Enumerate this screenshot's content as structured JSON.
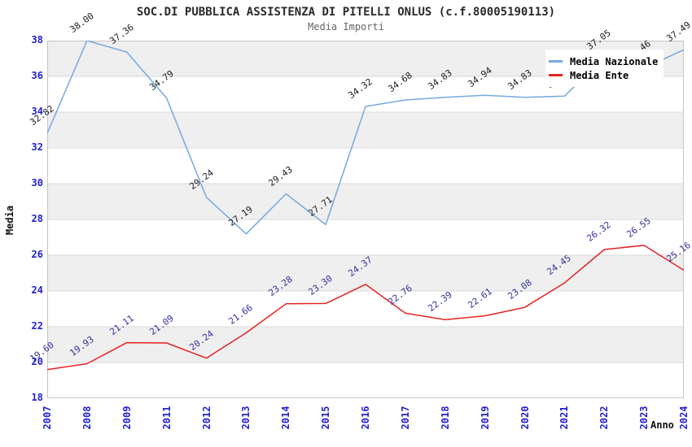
{
  "header": {
    "title": "SOC.DI PUBBLICA ASSISTENZA DI PITELLI ONLUS (c.f.80005190113)",
    "subtitle": "Media Importi"
  },
  "axes": {
    "y_label": "Media",
    "x_label": "Anno",
    "y_ticks": [
      38,
      36,
      34,
      32,
      30,
      28,
      26,
      24,
      22,
      20,
      18
    ]
  },
  "legend": {
    "items": [
      {
        "label": "Media Nazionale",
        "color": "#74a9e2"
      },
      {
        "label": "Media Ente",
        "color": "#e62222"
      }
    ]
  },
  "colors": {
    "band_gray": "#efefef",
    "grid_line": "#d9d9d9",
    "plot_border": "#c6c6c6",
    "tick_label_blue": "#2222cc",
    "nazionale_line": "#74a9e2",
    "ente_line": "#e62222",
    "nazionale_value_label": "#1c1c1c",
    "ente_value_label": "#32329e"
  },
  "chart_data": {
    "type": "line",
    "title": "SOC.DI PUBBLICA ASSISTENZA DI PITELLI ONLUS (c.f.80005190113)",
    "subtitle": "Media Importi",
    "xlabel": "Anno",
    "ylabel": "Media",
    "ylim": [
      18,
      38
    ],
    "y_tick_step": 2,
    "grid": "horizontal-bands-alternating",
    "legend_position": "top-right",
    "categories": [
      "2007",
      "2008",
      "2009",
      "2011",
      "2012",
      "2013",
      "2014",
      "2015",
      "2016",
      "2017",
      "2018",
      "2019",
      "2020",
      "2021",
      "2022",
      "2023",
      "2024"
    ],
    "series": [
      {
        "name": "Media Nazionale",
        "color": "#74a9e2",
        "label_color": "#1c1c1c",
        "values": [
          32.82,
          38.0,
          37.36,
          34.79,
          29.24,
          27.19,
          29.43,
          27.71,
          34.32,
          34.68,
          34.83,
          34.94,
          34.83,
          34.9,
          37.05,
          36.46,
          37.49
        ]
      },
      {
        "name": "Media Ente",
        "color": "#e62222",
        "label_color": "#32329e",
        "values": [
          19.6,
          19.93,
          21.11,
          21.09,
          20.24,
          21.66,
          23.28,
          23.3,
          24.37,
          22.76,
          22.39,
          22.61,
          23.08,
          24.45,
          26.32,
          26.55,
          25.16
        ]
      }
    ]
  }
}
